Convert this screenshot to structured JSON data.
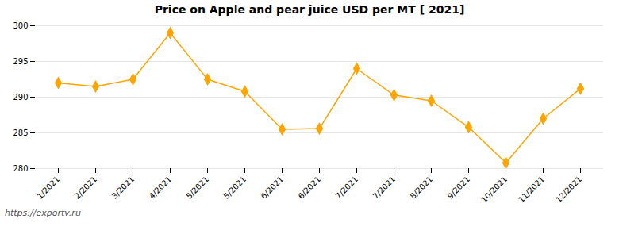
{
  "chart_data": {
    "type": "line",
    "title": "Price on Apple and pear juice USD per MT [ 2021]",
    "categories": [
      "1/2021",
      "2/2021",
      "3/2021",
      "4/2021",
      "5/2021",
      "5/2021",
      "6/2021",
      "6/2021",
      "7/2021",
      "7/2021",
      "8/2021",
      "9/2021",
      "10/2021",
      "11/2021",
      "12/2021"
    ],
    "values": [
      292,
      291.5,
      292.5,
      299,
      292.5,
      290.8,
      285.5,
      285.6,
      294,
      290.3,
      289.5,
      285.8,
      280.8,
      287,
      291.2
    ],
    "color": "#FFA500",
    "marker": "diamond",
    "ylim": [
      280,
      300
    ],
    "yticks": [
      280,
      285,
      290,
      295,
      300
    ],
    "grid": true,
    "annotations": [
      "https://exportv.ru"
    ]
  }
}
